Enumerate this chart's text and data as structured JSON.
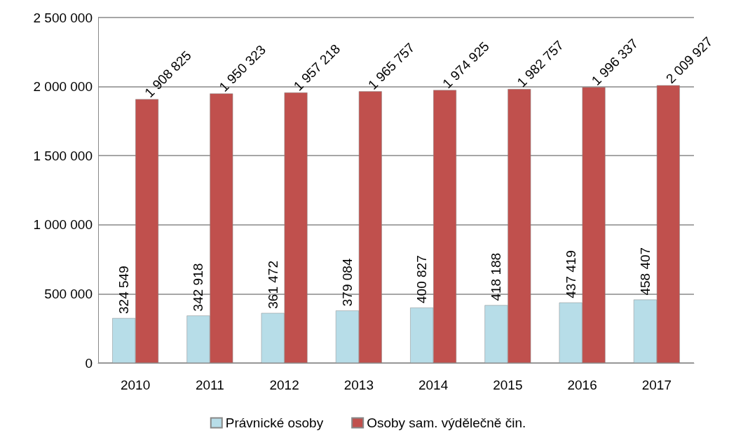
{
  "chart_data": {
    "type": "bar",
    "categories": [
      "2010",
      "2011",
      "2012",
      "2013",
      "2014",
      "2015",
      "2016",
      "2017"
    ],
    "series": [
      {
        "name": "Právnické osoby",
        "color": "#b7dde8",
        "values": [
          324549,
          342918,
          361472,
          379084,
          400827,
          418188,
          437419,
          458407
        ],
        "value_labels": [
          "324 549",
          "342 918",
          "361 472",
          "379 084",
          "400 827",
          "418 188",
          "437 419",
          "458 407"
        ]
      },
      {
        "name": "Osoby sam. výdělečně čin.",
        "color": "#c0504d",
        "values": [
          1908825,
          1950323,
          1957218,
          1965757,
          1974925,
          1982757,
          1996337,
          2009927
        ],
        "value_labels": [
          "1 908 825",
          "1 950 323",
          "1 957 218",
          "1 965 757",
          "1 974 925",
          "1 982 757",
          "1 996 337",
          "2 009 927"
        ]
      }
    ],
    "ylim": [
      0,
      2500000
    ],
    "yticks": [
      {
        "value": 0,
        "label": "0"
      },
      {
        "value": 500000,
        "label": "500 000"
      },
      {
        "value": 1000000,
        "label": "1 000 000"
      },
      {
        "value": 1500000,
        "label": "1 500 000"
      },
      {
        "value": 2000000,
        "label": "2 000 000"
      },
      {
        "value": 2500000,
        "label": "2 500 000"
      }
    ],
    "grid": "y",
    "legend": "bottom"
  }
}
